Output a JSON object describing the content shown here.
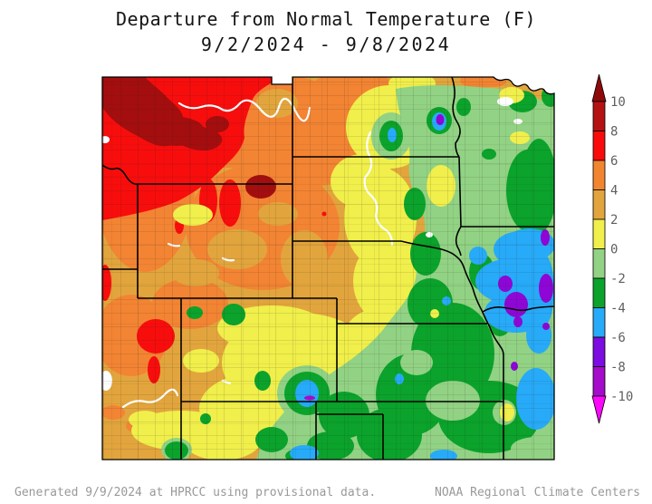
{
  "title": {
    "line1": "Departure from Normal Temperature (F)",
    "line2": "9/2/2024 - 9/8/2024"
  },
  "footer": {
    "left": "Generated 9/9/2024 at HPRCC using provisional data.",
    "right": "NOAA Regional Climate Centers"
  },
  "legend": {
    "tick_labels": [
      "10",
      "8",
      "6",
      "4",
      "2",
      "0",
      "-2",
      "-4",
      "-6",
      "-8",
      "-10"
    ],
    "segment_colors_top_to_bottom": [
      "#B51313",
      "#F90B0B",
      "#F2852F",
      "#E2A53D",
      "#F0EF4B",
      "#92D284",
      "#0BA32B",
      "#27AAF8",
      "#7C0CDF",
      "#A50BCB"
    ],
    "arrow_top_color": "#8E0A0A",
    "arrow_bottom_color": "#FB07FB",
    "label_color": "#5F5F5F"
  },
  "chart_data": {
    "type": "heatmap",
    "title": "Departure from Normal Temperature (F)",
    "period": "9/2/2024 - 9/8/2024",
    "units": "degrees F departure from normal",
    "colorbar": {
      "min": -10,
      "max": 10,
      "step": 2,
      "orientation": "vertical",
      "position": "right"
    },
    "geography": "High Plains region (MT, ND, SD, WY, NE, MN, IA, UT, CO, KS, MO and surroundings) with state and county borders",
    "regions": [
      {
        "area": "northwest corner (southwest Montana)",
        "departure_f": "+6 to +10"
      },
      {
        "area": "dark pockets in southwest Montana and near MT/ND border",
        "departure_f": "+8 to +10"
      },
      {
        "area": "Wyoming, western South Dakota, Utah border strip",
        "departure_f": "+4 to +6"
      },
      {
        "area": "red ovals in northeast Wyoming and northwest Colorado",
        "departure_f": "+6 to +8"
      },
      {
        "area": "central Dakotas, Nebraska panhandle, western Colorado",
        "departure_f": "+2 to +4"
      },
      {
        "area": "central Nebraska, central Kansas, central Colorado band",
        "departure_f": "0 to +2"
      },
      {
        "area": "eastern Dakotas, eastern Nebraska, Minnesota",
        "departure_f": "0 to -2"
      },
      {
        "area": "eastern Kansas, southeast Nebraska, western Missouri",
        "departure_f": "-2 to -4"
      },
      {
        "area": "southwest Iowa / northwest Missouri",
        "departure_f": "-4 to -6"
      },
      {
        "area": "purple pockets in southwest Iowa and one spot in east-central North Dakota",
        "departure_f": "-6 to -8"
      }
    ]
  }
}
